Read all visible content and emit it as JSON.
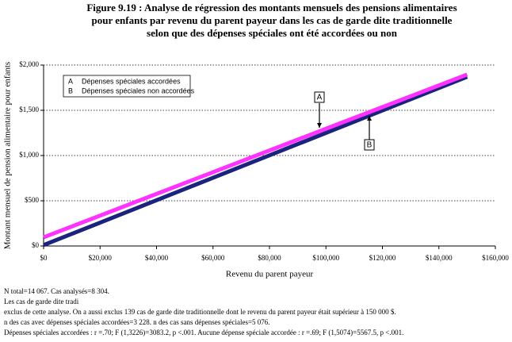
{
  "chart_data": {
    "type": "line",
    "title": [
      "Figure 9.19 : Analyse de régression des montants mensuels des pensions alimentaires",
      "pour enfants par revenu du parent payeur dans les cas de garde dite traditionnelle",
      "selon que des dépenses spéciales ont été accordées ou non"
    ],
    "x_label": "Revenu du parent payeur",
    "y_label": "Montant mensuel de pension alimentaire pour enfants",
    "x": [
      0,
      50000,
      100000,
      150000
    ],
    "series": [
      {
        "name": "Dépenses spéciales non accordées",
        "label": "B",
        "color": "#1a237e",
        "values": [
          10,
          630,
          1250,
          1870
        ]
      },
      {
        "name": "Dépenses spéciales accordées",
        "label": "A",
        "color": "#ff33ff",
        "values": [
          96,
          696,
          1296,
          1895
        ]
      }
    ],
    "xlim": [
      0,
      160000
    ],
    "xticks": [
      {
        "value": 0,
        "label": "$0"
      },
      {
        "value": 20000,
        "label": "$20,000"
      },
      {
        "value": 40000,
        "label": "$40,000"
      },
      {
        "value": 60000,
        "label": "$60,000"
      },
      {
        "value": 80000,
        "label": "$80,000"
      },
      {
        "value": 100000,
        "label": "$100,000"
      },
      {
        "value": 120000,
        "label": "$120,000"
      },
      {
        "value": 140000,
        "label": "$140,000"
      },
      {
        "value": 160000,
        "label": "$160,000"
      }
    ],
    "ylim": [
      0,
      2000
    ],
    "yticks": [
      {
        "value": 0,
        "label": "$0"
      },
      {
        "value": 500,
        "label": "$500"
      },
      {
        "value": 1000,
        "label": "$1,000"
      },
      {
        "value": 1500,
        "label": "$1,500"
      },
      {
        "value": 2000,
        "label": "$2,000"
      }
    ],
    "grid": true,
    "notes": [
      "N total=14 067.  Cas analysés=8 304.",
      "Les cas de garde dite tradi",
      "exclus de cette analyse. On a aussi exclus 139 cas de garde dite traditionnelle dont le revenu du parent payeur était supérieur à 150 000 $.",
      "n des cas avec dépenses spéciales accordées=3 228.  n des cas sans dépenses spéciales=5 076.",
      "Dépenses spéciales accordées :  r =.70; F (1,3226)=3083.2, p <.001.   Aucune dépense spéciale accordée :  r =.69; F (1,5074)=5567.5, p <.001."
    ]
  }
}
